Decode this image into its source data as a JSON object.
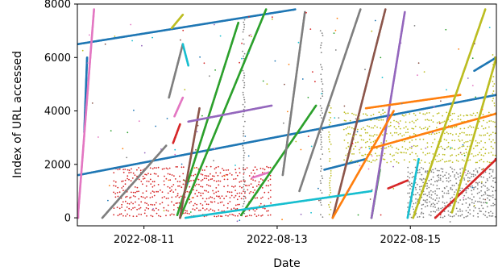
{
  "chart_data": {
    "type": "scatter",
    "title": "",
    "xlabel": "Date",
    "ylabel": "Index of URL accessed",
    "x_ticks": [
      "2022-08-11",
      "2022-08-13",
      "2022-08-15"
    ],
    "y_ticks": [
      0,
      2000,
      4000,
      6000,
      8000
    ],
    "xlim": [
      "2022-08-10T00:00",
      "2022-08-16T07:00"
    ],
    "ylim": [
      -300,
      8000
    ],
    "grid": false,
    "legend": "none",
    "note": "Each color is one access stream; streams shown as dense point runs (approximated by start/end points).",
    "series": [
      {
        "color": "#1f77b4",
        "segments": [
          {
            "x0": "2022-08-10T00:20",
            "y0": 1600,
            "x1": "2022-08-16T07:00",
            "y1": 4600
          },
          {
            "x0": "2022-08-10T00:10",
            "y0": 6500,
            "x1": "2022-08-13T06:30",
            "y1": 7800
          },
          {
            "x0": "2022-08-10T02:30",
            "y0": 3200,
            "x1": "2022-08-10T03:30",
            "y1": 6000
          },
          {
            "x0": "2022-08-13T17:00",
            "y0": 1800,
            "x1": "2022-08-14T08:00",
            "y1": 2200
          },
          {
            "x0": "2022-08-15T23:00",
            "y0": 5500,
            "x1": "2022-08-16T07:00",
            "y1": 6000
          }
        ]
      },
      {
        "color": "#e377c2",
        "segments": [
          {
            "x0": "2022-08-10T00:10",
            "y0": 0,
            "x1": "2022-08-10T06:00",
            "y1": 7800
          },
          {
            "x0": "2022-08-11T11:00",
            "y0": 3800,
            "x1": "2022-08-11T14:00",
            "y1": 4500
          },
          {
            "x0": "2022-08-12T15:00",
            "y0": 1500,
            "x1": "2022-08-12T21:00",
            "y1": 1700
          }
        ]
      },
      {
        "color": "#d62728",
        "segments": [
          {
            "x0": "2022-08-11T10:30",
            "y0": 2800,
            "x1": "2022-08-11T13:00",
            "y1": 3500
          },
          {
            "x0": "2022-08-14T16:00",
            "y0": 1100,
            "x1": "2022-08-14T23:00",
            "y1": 1400
          },
          {
            "x0": "2022-08-15T09:00",
            "y0": 0,
            "x1": "2022-08-16T07:00",
            "y1": 2200
          }
        ]
      },
      {
        "color": "#2ca02c",
        "segments": [
          {
            "x0": "2022-08-11T13:00",
            "y0": 0,
            "x1": "2022-08-12T20:00",
            "y1": 7800
          },
          {
            "x0": "2022-08-11T12:00",
            "y0": 100,
            "x1": "2022-08-12T10:00",
            "y1": 7300
          },
          {
            "x0": "2022-08-12T11:00",
            "y0": 100,
            "x1": "2022-08-13T14:00",
            "y1": 4200
          },
          {
            "x0": "2022-08-14T10:00",
            "y0": 0,
            "x1": "2022-08-14T13:00",
            "y1": 1800
          }
        ]
      },
      {
        "color": "#7f7f7f",
        "segments": [
          {
            "x0": "2022-08-10T09:00",
            "y0": 0,
            "x1": "2022-08-11T08:00",
            "y1": 2700
          },
          {
            "x0": "2022-08-11T09:00",
            "y0": 4500,
            "x1": "2022-08-11T14:00",
            "y1": 6500
          },
          {
            "x0": "2022-08-13T08:00",
            "y0": 1000,
            "x1": "2022-08-14T06:00",
            "y1": 7800
          },
          {
            "x0": "2022-08-13T02:00",
            "y0": 1600,
            "x1": "2022-08-13T10:00",
            "y1": 7700
          }
        ]
      },
      {
        "color": "#8c564b",
        "segments": [
          {
            "x0": "2022-08-11T13:00",
            "y0": 0,
            "x1": "2022-08-11T20:00",
            "y1": 4100
          },
          {
            "x0": "2022-08-13T20:00",
            "y0": 0,
            "x1": "2022-08-14T15:00",
            "y1": 7800
          }
        ]
      },
      {
        "color": "#9467bd",
        "segments": [
          {
            "x0": "2022-08-11T16:00",
            "y0": 3600,
            "x1": "2022-08-12T22:00",
            "y1": 4200
          },
          {
            "x0": "2022-08-14T10:00",
            "y0": 0,
            "x1": "2022-08-14T22:00",
            "y1": 7700
          }
        ]
      },
      {
        "color": "#17becf",
        "segments": [
          {
            "x0": "2022-08-11T15:00",
            "y0": 0,
            "x1": "2022-08-14T10:00",
            "y1": 1000
          },
          {
            "x0": "2022-08-14T23:00",
            "y0": 0,
            "x1": "2022-08-15T03:00",
            "y1": 2200
          },
          {
            "x0": "2022-08-11T14:00",
            "y0": 6500,
            "x1": "2022-08-11T16:00",
            "y1": 5700
          }
        ]
      },
      {
        "color": "#ff7f0e",
        "segments": [
          {
            "x0": "2022-08-13T20:00",
            "y0": 0,
            "x1": "2022-08-14T18:00",
            "y1": 4000
          },
          {
            "x0": "2022-08-14T08:00",
            "y0": 4100,
            "x1": "2022-08-15T18:00",
            "y1": 4600
          },
          {
            "x0": "2022-08-14T10:00",
            "y0": 2600,
            "x1": "2022-08-16T07:00",
            "y1": 3900
          }
        ]
      },
      {
        "color": "#bcbd22",
        "segments": [
          {
            "x0": "2022-08-15T01:00",
            "y0": 0,
            "x1": "2022-08-16T03:00",
            "y1": 7800
          },
          {
            "x0": "2022-08-15T15:00",
            "y0": 200,
            "x1": "2022-08-16T07:00",
            "y1": 6000
          },
          {
            "x0": "2022-08-11T10:00",
            "y0": 7100,
            "x1": "2022-08-11T14:00",
            "y1": 7600
          }
        ]
      }
    ],
    "clouds": [
      {
        "color": "#d62728",
        "x0": "2022-08-10T13:00",
        "x1": "2022-08-12T22:00",
        "y0": 0,
        "y1": 1950,
        "rows": 9
      },
      {
        "color": "#bcbd22",
        "x0": "2022-08-14T00:00",
        "x1": "2022-08-16T07:00",
        "y0": 2000,
        "y1": 4000,
        "rows": 8
      },
      {
        "color": "#7f7f7f",
        "x0": "2022-08-14T23:00",
        "x1": "2022-08-16T07:00",
        "y0": 0,
        "y1": 1900,
        "rows": 12
      }
    ],
    "vertical_streaks": [
      {
        "color": "#7f7f7f",
        "x": "2022-08-12T12:00",
        "y0": 0,
        "y1": 7500
      },
      {
        "color": "#7f7f7f",
        "x": "2022-08-13T16:00",
        "y0": 0,
        "y1": 7000
      },
      {
        "color": "#bcbd22",
        "x": "2022-08-13T19:00",
        "y0": 0,
        "y1": 4200
      },
      {
        "color": "#bcbd22",
        "x": "2022-08-16T06:00",
        "y0": 4000,
        "y1": 6100
      }
    ]
  }
}
